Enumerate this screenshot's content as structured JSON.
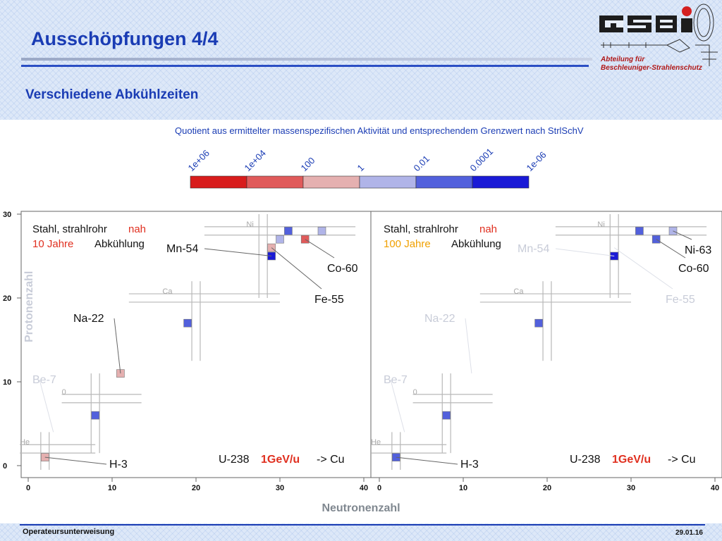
{
  "slide": {
    "title": "Ausschöpfungen 4/4",
    "subtitle": "Verschiedene Abkühlzeiten",
    "department_line1": "Abteilung für",
    "department_line2": "Beschleuniger-Strahlenschutz",
    "footer_left": "Operateursunterweisung",
    "footer_right": "29.01.16"
  },
  "colors": {
    "title": "#1a3cb4",
    "department": "#b01818",
    "highlight_red": "#e03020",
    "highlight_orange": "#f0a000",
    "faded_label": "#c8ccd8"
  },
  "scale": {
    "caption": "Quotient aus ermittelter massenspezifischen Aktivität und entsprechendem Grenzwert nach StrlSchV",
    "labels": [
      "1e+06",
      "1e+04",
      "100",
      "1",
      "0.01",
      "0.0001",
      "1e-06"
    ],
    "colors": [
      "#d81c1c",
      "#e05a5a",
      "#e5b0b0",
      "#b0b4e8",
      "#5260dc",
      "#1a1ad6"
    ]
  },
  "chart_data": [
    {
      "type": "heatmap",
      "xlabel": "Neutronenzahl",
      "ylabel": "Protonenzahl",
      "xlim": [
        0,
        40
      ],
      "ylim": [
        0,
        30
      ],
      "x_ticks": [
        "0",
        "10",
        "20",
        "30",
        "40"
      ],
      "y_ticks": [
        "0",
        "10",
        "20",
        "30"
      ],
      "header_line1": "Stahl, strahlrohr",
      "header_nah": "nah",
      "header_time": "10 Jahre",
      "header_rest": "Abkühlung",
      "reaction_beam": "U-238",
      "reaction_energy": "1GeV/u",
      "reaction_target": "-> Cu",
      "element_labels": [
        {
          "name": "Ni",
          "n": 26,
          "z": 28
        },
        {
          "name": "Ca",
          "n": 16,
          "z": 20
        },
        {
          "name": "0",
          "n": 4,
          "z": 8
        },
        {
          "name": "He",
          "n": -1,
          "z": 2
        }
      ],
      "isotopes": [
        {
          "label": "H-3",
          "n": 2,
          "z": 1,
          "color": "#e5b0b0",
          "label_faded": false
        },
        {
          "label": "Be-7",
          "n": 3,
          "z": 4,
          "color": "",
          "label_faded": true
        },
        {
          "label": "",
          "n": 8,
          "z": 6,
          "color": "#5260dc",
          "label_faded": false
        },
        {
          "label": "Na-22",
          "n": 11,
          "z": 11,
          "color": "#e5b0b0",
          "label_faded": false
        },
        {
          "label": "",
          "n": 19,
          "z": 17,
          "color": "#5260dc",
          "label_faded": false
        },
        {
          "label": "Mn-54",
          "n": 29,
          "z": 25,
          "color": "#1a1ad6",
          "label_faded": false
        },
        {
          "label": "Fe-55",
          "n": 29,
          "z": 26,
          "color": "#e5b0b0",
          "label_faded": false
        },
        {
          "label": "",
          "n": 30,
          "z": 27,
          "color": "#b0b4e8",
          "label_faded": false
        },
        {
          "label": "",
          "n": 31,
          "z": 28,
          "color": "#5260dc",
          "label_faded": false
        },
        {
          "label": "Co-60",
          "n": 33,
          "z": 27,
          "color": "#e05a5a",
          "label_faded": false
        },
        {
          "label": "",
          "n": 35,
          "z": 28,
          "color": "#b0b4e8",
          "label_faded": false
        }
      ]
    },
    {
      "type": "heatmap",
      "xlabel": "Neutronenzahl",
      "ylabel": "Protonenzahl",
      "xlim": [
        0,
        40
      ],
      "ylim": [
        0,
        30
      ],
      "x_ticks": [
        "0",
        "10",
        "20",
        "30",
        "40"
      ],
      "y_ticks": [
        "0",
        "10",
        "20",
        "30"
      ],
      "header_line1": "Stahl, strahlrohr",
      "header_nah": "nah",
      "header_time": "100 Jahre",
      "header_rest": "Abkühlung",
      "reaction_beam": "U-238",
      "reaction_energy": "1GeV/u",
      "reaction_target": "-> Cu",
      "element_labels": [
        {
          "name": "Ni",
          "n": 26,
          "z": 28
        },
        {
          "name": "Ca",
          "n": 16,
          "z": 20
        },
        {
          "name": "0",
          "n": 4,
          "z": 8
        },
        {
          "name": "He",
          "n": -1,
          "z": 2
        }
      ],
      "isotopes": [
        {
          "label": "H-3",
          "n": 2,
          "z": 1,
          "color": "#5260dc",
          "label_faded": false
        },
        {
          "label": "Be-7",
          "n": 3,
          "z": 4,
          "color": "",
          "label_faded": true
        },
        {
          "label": "",
          "n": 8,
          "z": 6,
          "color": "#5260dc",
          "label_faded": false
        },
        {
          "label": "Na-22",
          "n": 11,
          "z": 11,
          "color": "",
          "label_faded": true
        },
        {
          "label": "",
          "n": 19,
          "z": 17,
          "color": "#5260dc",
          "label_faded": false
        },
        {
          "label": "Mn-54",
          "n": 28,
          "z": 25,
          "color": "#1a1ad6",
          "label_faded": true
        },
        {
          "label": "Fe-55",
          "n": 28,
          "z": 26,
          "color": "",
          "label_faded": true
        },
        {
          "label": "",
          "n": 31,
          "z": 28,
          "color": "#5260dc",
          "label_faded": false
        },
        {
          "label": "Co-60",
          "n": 33,
          "z": 27,
          "color": "#5260dc",
          "label_faded": false
        },
        {
          "label": "Ni-63",
          "n": 35,
          "z": 28,
          "color": "#b0b4e8",
          "label_faded": false
        }
      ]
    }
  ]
}
